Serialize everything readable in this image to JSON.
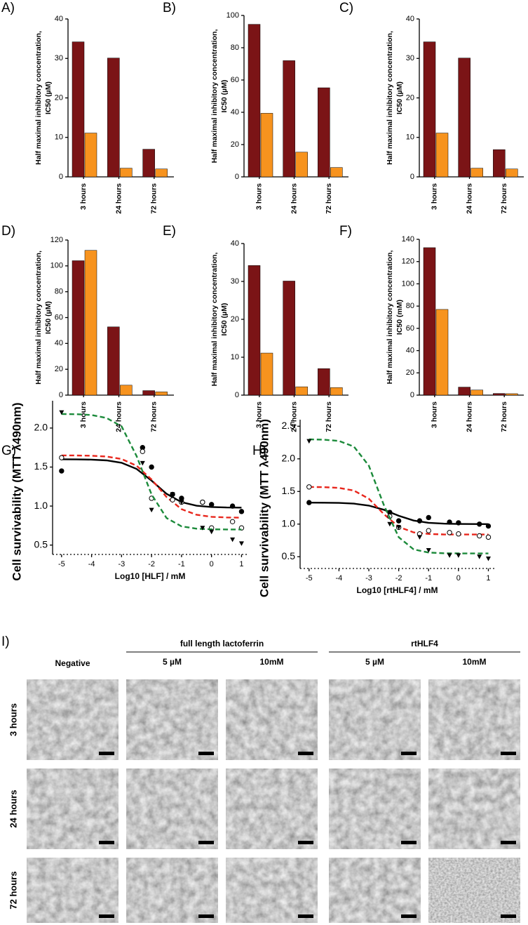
{
  "chart_data": [
    {
      "type": "bar",
      "label": "A)",
      "ylabel": [
        "Half maximal inhibitory concentration,",
        "IC50 (µM)"
      ],
      "categories": [
        "3 hours",
        "24 hours",
        "72 hours"
      ],
      "series": [
        {
          "color": "#7b1416",
          "values": [
            34.2,
            30.1,
            7.0
          ]
        },
        {
          "color": "#f7931e",
          "values": [
            11.1,
            2.2,
            2.0
          ]
        }
      ],
      "ylim": [
        0,
        40
      ],
      "yticks": [
        0,
        10,
        20,
        30,
        40
      ]
    },
    {
      "type": "bar",
      "label": "B)",
      "ylabel": [
        "Half maximal inhibitory concentration,",
        "IC50 (µM)"
      ],
      "categories": [
        "3 hours",
        "24 hours",
        "72 hours"
      ],
      "series": [
        {
          "color": "#7b1416",
          "values": [
            94.5,
            72.0,
            55.2
          ]
        },
        {
          "color": "#f7931e",
          "values": [
            39.4,
            15.3,
            5.8
          ]
        }
      ],
      "ylim": [
        0,
        100
      ],
      "yticks": [
        0,
        20,
        40,
        60,
        80,
        100
      ]
    },
    {
      "type": "bar",
      "label": "C)",
      "ylabel": [
        "Half maximal inhibitory concentration,",
        "IC50 (µM)"
      ],
      "categories": [
        "3 hours",
        "24 hours",
        "72 hours"
      ],
      "series": [
        {
          "color": "#7b1416",
          "values": [
            34.2,
            30.1,
            6.9
          ]
        },
        {
          "color": "#f7931e",
          "values": [
            11.1,
            2.2,
            2.0
          ]
        }
      ],
      "ylim": [
        0,
        40
      ],
      "yticks": [
        0,
        10,
        20,
        30,
        40
      ]
    },
    {
      "type": "bar",
      "label": "D)",
      "ylabel": [
        "Half maximal inhibitory concentration,",
        "IC50 (µM)"
      ],
      "categories": [
        "3 hours",
        "24 hours",
        "72 hours"
      ],
      "series": [
        {
          "color": "#7b1416",
          "values": [
            104,
            52.8,
            3.5
          ]
        },
        {
          "color": "#f7931e",
          "values": [
            112,
            7.7,
            2.5
          ]
        }
      ],
      "ylim": [
        0,
        120
      ],
      "yticks": [
        0,
        20,
        40,
        60,
        80,
        100,
        120
      ]
    },
    {
      "type": "bar",
      "label": "E)",
      "ylabel": [
        "Half maximal inhibitory concentration,",
        "IC50 (µM)"
      ],
      "categories": [
        "3 hours",
        "24 hours",
        "72 hours"
      ],
      "series": [
        {
          "color": "#7b1416",
          "values": [
            34.2,
            30.1,
            7.0
          ]
        },
        {
          "color": "#f7931e",
          "values": [
            11.1,
            2.2,
            2.0
          ]
        }
      ],
      "ylim": [
        0,
        40
      ],
      "yticks": [
        0,
        10,
        20,
        30,
        40
      ]
    },
    {
      "type": "bar",
      "label": "F)",
      "ylabel": [
        "Half maximal inhibitory concentration,",
        "IC50 (mM)"
      ],
      "categories": [
        "3 hours",
        "24 hours",
        "72 hours"
      ],
      "series": [
        {
          "color": "#7b1416",
          "values": [
            132.5,
            7.2,
            1.5
          ]
        },
        {
          "color": "#f7931e",
          "values": [
            77,
            4.6,
            1.3
          ]
        }
      ],
      "ylim": [
        0,
        140
      ],
      "yticks": [
        0,
        20,
        40,
        60,
        80,
        100,
        120,
        140
      ]
    },
    {
      "type": "scatter",
      "label": "G)",
      "ylabel": "Cell survivability (MTT λ490nm)",
      "xlabel": "Log10 [HLF] / mM",
      "xlim": [
        -5.3,
        1.2
      ],
      "xticks": [
        -5,
        -4,
        -3,
        -2,
        -1,
        0,
        1
      ],
      "ylim": [
        0.38,
        2.35
      ],
      "yticks": [
        0.5,
        {
          "value": 1.0,
          "label": "1.0"
        },
        1.5,
        {
          "value": 2.0,
          "label": "2.0"
        }
      ],
      "series": [
        {
          "color": "#000000",
          "marker": "circle-filled",
          "dash": false,
          "x": [
            -5,
            -2.3,
            -2,
            -1.3,
            -1,
            -0.3,
            0,
            0.7,
            1
          ],
          "values": [
            1.45,
            1.75,
            1.5,
            1.15,
            1.1,
            1.05,
            1.02,
            1.0,
            0.93
          ],
          "fit": {
            "x": [
              -5,
              -4.5,
              -4,
              -3.5,
              -3,
              -2.5,
              -2,
              -1.5,
              -1,
              -0.5,
              0,
              0.5,
              1
            ],
            "values": [
              1.6,
              1.598,
              1.595,
              1.585,
              1.555,
              1.476,
              1.326,
              1.157,
              1.05,
              1.004,
              0.988,
              0.982,
              0.98
            ]
          }
        },
        {
          "color": "#e8261c",
          "marker": "circle-open",
          "dash": true,
          "x": [
            -5,
            -2.3,
            -2,
            -1.3,
            -1,
            -0.3,
            0,
            0.7,
            1
          ],
          "values": [
            1.62,
            1.7,
            1.1,
            1.08,
            1.05,
            1.05,
            0.72,
            0.8,
            0.72
          ],
          "fit": {
            "x": [
              -5,
              -4.5,
              -4,
              -3.5,
              -3,
              -2.5,
              -2,
              -1.5,
              -1,
              -0.5,
              0,
              0.5,
              1
            ],
            "values": [
              1.649,
              1.648,
              1.645,
              1.635,
              1.603,
              1.517,
              1.341,
              1.117,
              0.96,
              0.888,
              0.862,
              0.854,
              0.851
            ]
          }
        },
        {
          "color": "#1b8a3a",
          "marker": "triangle-down",
          "dash": true,
          "x": [
            -5,
            -2.3,
            -2,
            -1.3,
            -1,
            -0.3,
            0,
            0.7,
            1
          ],
          "values": [
            2.2,
            1.55,
            0.95,
            1.15,
            1.05,
            0.72,
            0.67,
            0.57,
            0.52
          ],
          "fit": {
            "x": [
              -5,
              -4.5,
              -4,
              -3.5,
              -3,
              -2.5,
              -2,
              -1.5,
              -1,
              -0.5,
              0,
              0.5,
              1
            ],
            "values": [
              2.18,
              2.177,
              2.167,
              2.129,
              2.022,
              1.64,
              1.15,
              0.847,
              0.74,
              0.71,
              0.702,
              0.7,
              0.7
            ]
          }
        }
      ]
    },
    {
      "type": "scatter",
      "label": "H)",
      "ylabel": "Cell survivability (MTT λ490nm)",
      "xlabel": "Log10 [rtHLF4] / mM",
      "xlim": [
        -5.3,
        1.2
      ],
      "xticks": [
        -5,
        -4,
        -3,
        -2,
        -1,
        0,
        1
      ],
      "ylim": [
        0.32,
        2.6
      ],
      "yticks": [
        0.5,
        {
          "value": 1.0,
          "label": "1.0"
        },
        1.5,
        {
          "value": 2.0,
          "label": "2.0"
        },
        2.5
      ],
      "series": [
        {
          "color": "#000000",
          "marker": "circle-filled",
          "dash": false,
          "x": [
            -5,
            -2.3,
            -2,
            -1.3,
            -1,
            -0.3,
            0,
            0.7,
            1
          ],
          "values": [
            1.33,
            1.18,
            1.05,
            1.05,
            1.1,
            1.03,
            1.02,
            1.0,
            0.97
          ],
          "fit": {
            "x": [
              -5,
              -4.5,
              -4,
              -3.5,
              -3,
              -2.5,
              -2,
              -1.5,
              -1,
              -0.5,
              0,
              0.5,
              1
            ],
            "values": [
              1.329,
              1.328,
              1.325,
              1.314,
              1.284,
              1.22,
              1.128,
              1.055,
              1.02,
              1.007,
              1.002,
              1.001,
              1.0
            ]
          }
        },
        {
          "color": "#e8261c",
          "marker": "circle-open",
          "dash": true,
          "x": [
            -5,
            -2.3,
            -2,
            -1.3,
            -1,
            -0.3,
            0,
            0.7,
            1
          ],
          "values": [
            1.57,
            1.12,
            0.95,
            0.85,
            0.9,
            0.87,
            0.85,
            0.82,
            0.8
          ],
          "fit": {
            "x": [
              -5,
              -4.5,
              -4,
              -3.5,
              -3,
              -2.5,
              -2,
              -1.5,
              -1,
              -0.5,
              0,
              0.5,
              1
            ],
            "values": [
              1.569,
              1.566,
              1.555,
              1.514,
              1.389,
              1.155,
              0.958,
              0.873,
              0.849,
              0.842,
              0.84,
              0.84,
              0.84
            ]
          }
        },
        {
          "color": "#1b8a3a",
          "marker": "triangle-down",
          "dash": true,
          "x": [
            -5,
            -2.3,
            -2,
            -1.3,
            -1,
            -0.3,
            0,
            0.7,
            1
          ],
          "values": [
            2.27,
            1.0,
            0.95,
            0.8,
            0.6,
            0.52,
            0.52,
            0.5,
            0.47
          ],
          "fit": {
            "x": [
              -5,
              -4.5,
              -4,
              -3.5,
              -3,
              -2.5,
              -2,
              -1.5,
              -1,
              -0.5,
              0,
              0.5,
              1
            ],
            "values": [
              2.299,
              2.294,
              2.274,
              2.188,
              1.896,
              1.295,
              0.8,
              0.613,
              0.564,
              0.553,
              0.551,
              0.55,
              0.55
            ]
          }
        }
      ]
    }
  ],
  "panel_I": {
    "label": "I)",
    "negative": "Negative",
    "groups": [
      {
        "title": "full length lactoferrin",
        "doses": [
          "5 µM",
          "10mM"
        ]
      },
      {
        "title": "rtHLF4",
        "doses": [
          "5 µM",
          "10mM"
        ]
      }
    ],
    "rows": [
      "3 hours",
      "24 hours",
      "72 hours"
    ]
  }
}
